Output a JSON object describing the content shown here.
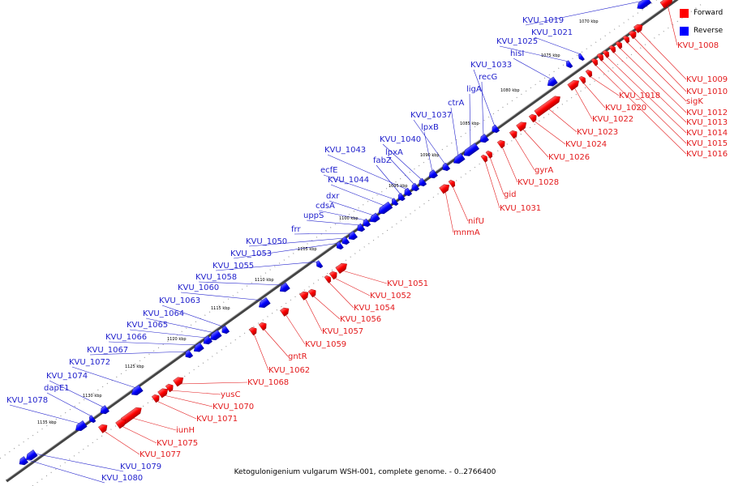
{
  "caption": "Ketogulonigenium vulgarum WSH-001, complete genome. - 0..2766400",
  "legend": [
    {
      "label": "Forward",
      "color": "#ff0000"
    },
    {
      "label": "Reverse",
      "color": "#0000ff"
    }
  ],
  "ticks": [
    "1070 kbp",
    "1075 kbp",
    "1080 kbp",
    "1085 kbp",
    "1090 kbp",
    "1095 kbp",
    "1100 kbp",
    "1105 kbp",
    "1110 kbp",
    "1115 kbp",
    "1120 kbp",
    "1125 kbp",
    "1130 kbp",
    "1135 kbp"
  ],
  "reverse_genes": [
    "KVU_1019",
    "KVU_1021",
    "KVU_1025",
    "hisI",
    "KVU_1033",
    "recG",
    "ligA",
    "ctrA",
    "KVU_1037",
    "lpxB",
    "KVU_1040",
    "lpxA",
    "KVU_1043",
    "fabZ",
    "ecfE",
    "KVU_1044",
    "dxr",
    "cdsA",
    "uppS",
    "frr",
    "KVU_1050",
    "KVU_1053",
    "KVU_1055",
    "KVU_1058",
    "KVU_1060",
    "KVU_1063",
    "KVU_1064",
    "KVU_1065",
    "KVU_1066",
    "KVU_1067",
    "KVU_1072",
    "KVU_1074",
    "dapE1",
    "KVU_1078",
    "KVU_1079",
    "KVU_1080"
  ],
  "forward_genes": [
    "KVU_1008",
    "KVU_1009",
    "KVU_1010",
    "sigK",
    "KVU_1012",
    "KVU_1013",
    "KVU_1014",
    "KVU_1015",
    "KVU_1016",
    "KVU_1018",
    "KVU_1020",
    "KVU_1022",
    "KVU_1023",
    "KVU_1024",
    "KVU_1026",
    "gyrA",
    "KVU_1028",
    "gid",
    "KVU_1031",
    "nifU",
    "mnmA",
    "KVU_1051",
    "KVU_1052",
    "KVU_1054",
    "KVU_1056",
    "KVU_1057",
    "KVU_1059",
    "gntR",
    "KVU_1062",
    "KVU_1068",
    "yusC",
    "KVU_1070",
    "KVU_1071",
    "iunH",
    "KVU_1075",
    "KVU_1077"
  ],
  "colors": {
    "forward": "#ff0000",
    "reverse": "#0000ff",
    "forward_label": "#e31a1c",
    "reverse_label": "#1f1fcc"
  }
}
